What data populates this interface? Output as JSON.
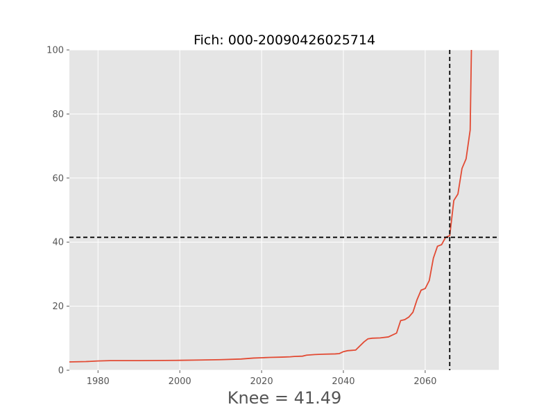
{
  "chart_data": {
    "type": "line",
    "title": "Fich: 000-20090426025714",
    "xlabel": "Knee = 41.49",
    "ylabel": "",
    "xlim": [
      1973,
      2078
    ],
    "ylim": [
      0,
      100
    ],
    "x_ticks": [
      1980,
      2000,
      2020,
      2040,
      2060
    ],
    "y_ticks": [
      0,
      20,
      40,
      60,
      80,
      100
    ],
    "grid": true,
    "colors": {
      "line": "#E24A33",
      "background": "#E5E5E5",
      "grid": "#ffffff",
      "reference": "#000000"
    },
    "series": [
      {
        "x": [
          1973,
          1977,
          1980,
          1983,
          1990,
          2000,
          2005,
          2010,
          2015,
          2018,
          2020,
          2022,
          2025,
          2027,
          2028,
          2030,
          2031,
          2033,
          2035,
          2038,
          2039,
          2040,
          2041,
          2043,
          2045,
          2046,
          2047,
          2049,
          2051,
          2053,
          2054,
          2055,
          2056,
          2057,
          2058,
          2059,
          2060,
          2061,
          2062,
          2063,
          2064,
          2065,
          2066,
          2067,
          2068,
          2069,
          2070,
          2071,
          2071.3
        ],
        "y": [
          2.6,
          2.7,
          2.9,
          3.0,
          3.0,
          3.1,
          3.2,
          3.3,
          3.5,
          3.8,
          3.9,
          4.0,
          4.1,
          4.2,
          4.3,
          4.4,
          4.7,
          4.9,
          5.0,
          5.1,
          5.2,
          5.8,
          6.1,
          6.3,
          8.8,
          9.8,
          10.0,
          10.1,
          10.4,
          11.6,
          15.5,
          15.8,
          16.6,
          18.1,
          22.0,
          25.0,
          25.5,
          28.0,
          35.0,
          38.7,
          39.2,
          41.5,
          42.0,
          53.0,
          55.0,
          63.0,
          66.0,
          75.0,
          100.0
        ]
      }
    ],
    "reference_lines": {
      "x": 2066,
      "y": 41.49
    }
  }
}
